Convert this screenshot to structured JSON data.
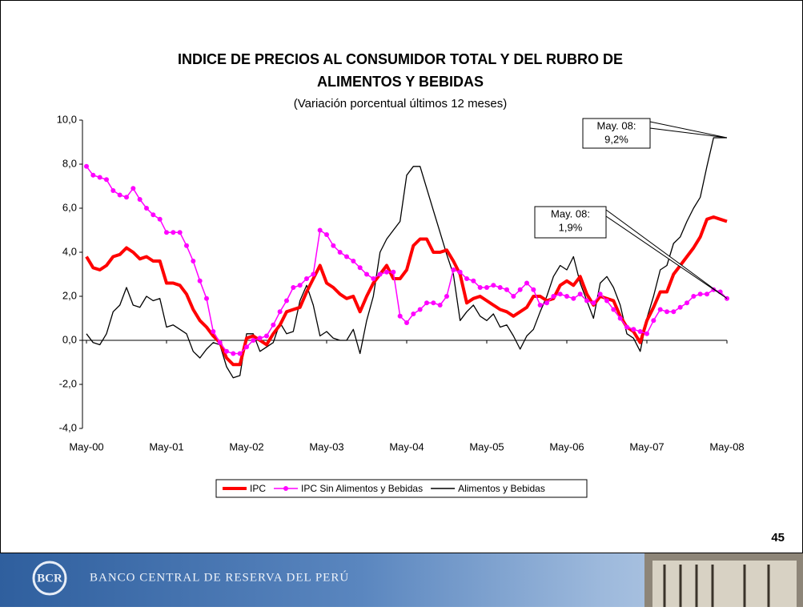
{
  "chart_data": {
    "type": "line",
    "title": [
      "INDICE DE PRECIOS AL CONSUMIDOR TOTAL Y DEL RUBRO DE",
      "ALIMENTOS Y BEBIDAS"
    ],
    "subtitle": "(Variación porcentual últimos 12 meses)",
    "categories": [
      "May-00",
      null,
      null,
      null,
      null,
      null,
      null,
      null,
      null,
      null,
      null,
      null,
      "May-01",
      null,
      null,
      null,
      null,
      null,
      null,
      null,
      null,
      null,
      null,
      null,
      "May-02",
      null,
      null,
      null,
      null,
      null,
      null,
      null,
      null,
      null,
      null,
      null,
      "May-03",
      null,
      null,
      null,
      null,
      null,
      null,
      null,
      null,
      null,
      null,
      null,
      "May-04",
      null,
      null,
      null,
      null,
      null,
      null,
      null,
      null,
      null,
      null,
      null,
      "May-05",
      null,
      null,
      null,
      null,
      null,
      null,
      null,
      null,
      null,
      null,
      null,
      "May-06",
      null,
      null,
      null,
      null,
      null,
      null,
      null,
      null,
      null,
      null,
      null,
      "May-07",
      null,
      null,
      null,
      null,
      null,
      null,
      null,
      null,
      null,
      null,
      null,
      "May-08"
    ],
    "series": [
      {
        "name": "IPC",
        "color": "#ff0000",
        "values": [
          3.8,
          3.3,
          3.2,
          3.4,
          3.8,
          3.9,
          4.2,
          4.0,
          3.7,
          3.8,
          3.6,
          3.6,
          2.6,
          2.6,
          2.5,
          2.1,
          1.4,
          0.9,
          0.6,
          0.2,
          -0.1,
          -0.8,
          -1.1,
          -1.1,
          0.1,
          0.2,
          0.0,
          -0.2,
          0.3,
          0.7,
          1.3,
          1.4,
          1.5,
          2.2,
          2.8,
          3.4,
          2.6,
          2.4,
          2.1,
          1.9,
          2.0,
          1.3,
          2.0,
          2.6,
          3.0,
          3.4,
          2.8,
          2.8,
          3.2,
          4.3,
          4.6,
          4.6,
          4.0,
          4.0,
          4.1,
          3.6,
          3.0,
          1.7,
          1.9,
          2.0,
          1.8,
          1.6,
          1.4,
          1.3,
          1.1,
          1.3,
          1.5,
          2.0,
          2.0,
          1.8,
          1.9,
          2.5,
          2.7,
          2.5,
          2.9,
          2.1,
          1.6,
          2.0,
          1.9,
          1.8,
          1.1,
          0.6,
          0.4,
          -0.1,
          0.9,
          1.5,
          2.2,
          2.2,
          3.0,
          3.4,
          3.8,
          4.2,
          4.7,
          5.5,
          5.6,
          5.5,
          5.4
        ]
      },
      {
        "name": "IPC Sin Alimentos y Bebidas",
        "color": "#ff00ff",
        "values": [
          7.9,
          7.5,
          7.4,
          7.3,
          6.8,
          6.6,
          6.5,
          6.9,
          6.4,
          6.0,
          5.7,
          5.5,
          4.9,
          4.9,
          4.9,
          4.3,
          3.6,
          2.7,
          1.9,
          0.4,
          -0.1,
          -0.5,
          -0.6,
          -0.6,
          -0.3,
          0.0,
          0.1,
          0.2,
          0.7,
          1.3,
          1.8,
          2.4,
          2.5,
          2.8,
          3.0,
          5.0,
          4.8,
          4.3,
          4.0,
          3.8,
          3.6,
          3.3,
          3.0,
          2.8,
          3.0,
          3.1,
          3.1,
          1.1,
          0.8,
          1.2,
          1.4,
          1.7,
          1.7,
          1.6,
          2.0,
          3.2,
          3.1,
          2.8,
          2.7,
          2.4,
          2.4,
          2.5,
          2.4,
          2.3,
          2.0,
          2.3,
          2.6,
          2.3,
          1.6,
          1.7,
          2.0,
          2.1,
          2.0,
          1.9,
          2.1,
          1.8,
          1.7,
          2.1,
          1.8,
          1.4,
          1.0,
          0.6,
          0.5,
          0.4,
          0.3,
          0.9,
          1.4,
          1.3,
          1.3,
          1.5,
          1.7,
          2.0,
          2.1,
          2.1,
          2.3,
          2.2,
          1.9
        ]
      },
      {
        "name": "Alimentos y Bebidas",
        "color": "#000000",
        "values": [
          0.3,
          -0.1,
          -0.2,
          0.3,
          1.3,
          1.6,
          2.4,
          1.6,
          1.5,
          2.0,
          1.8,
          1.9,
          0.6,
          0.7,
          0.5,
          0.3,
          -0.5,
          -0.8,
          -0.4,
          -0.1,
          -0.2,
          -1.2,
          -1.7,
          -1.6,
          0.3,
          0.3,
          -0.5,
          -0.3,
          -0.1,
          0.8,
          0.3,
          0.4,
          1.8,
          2.5,
          1.6,
          0.2,
          0.4,
          0.1,
          0.0,
          0.0,
          0.5,
          -0.6,
          0.9,
          2.0,
          4.0,
          4.6,
          5.0,
          5.4,
          7.5,
          7.9,
          7.9,
          6.9,
          5.9,
          4.9,
          3.9,
          3.0,
          0.9,
          1.3,
          1.6,
          1.1,
          0.9,
          1.2,
          0.6,
          0.7,
          0.2,
          -0.4,
          0.2,
          0.5,
          1.3,
          2.0,
          2.9,
          3.4,
          3.2,
          3.8,
          2.6,
          1.8,
          1.0,
          2.6,
          2.9,
          2.4,
          1.6,
          0.3,
          0.1,
          -0.5,
          1.0,
          2.0,
          3.2,
          3.4,
          4.4,
          4.7,
          5.4,
          6.0,
          6.5,
          7.9,
          9.2,
          9.2,
          9.2
        ]
      }
    ],
    "ylim": [
      -4,
      10
    ],
    "yticks": [
      {
        "value": -4,
        "label": "-4,0"
      },
      {
        "value": -2,
        "label": "-2,0"
      },
      {
        "value": 0,
        "label": "0,0"
      },
      {
        "value": 2,
        "label": "2,0"
      },
      {
        "value": 4,
        "label": "4,0"
      },
      {
        "value": 6,
        "label": "6,0"
      },
      {
        "value": 8,
        "label": "8,0"
      },
      {
        "value": 10,
        "label": "10,0"
      }
    ],
    "annotations": [
      {
        "lines": [
          "May. 08:",
          "9,2%"
        ],
        "series": 2
      },
      {
        "lines": [
          "May. 08:",
          "1,9%"
        ],
        "series": 1
      }
    ]
  },
  "page_number": "45",
  "footer": {
    "bank_name": "BANCO CENTRAL DE RESERVA DEL PERÚ"
  }
}
